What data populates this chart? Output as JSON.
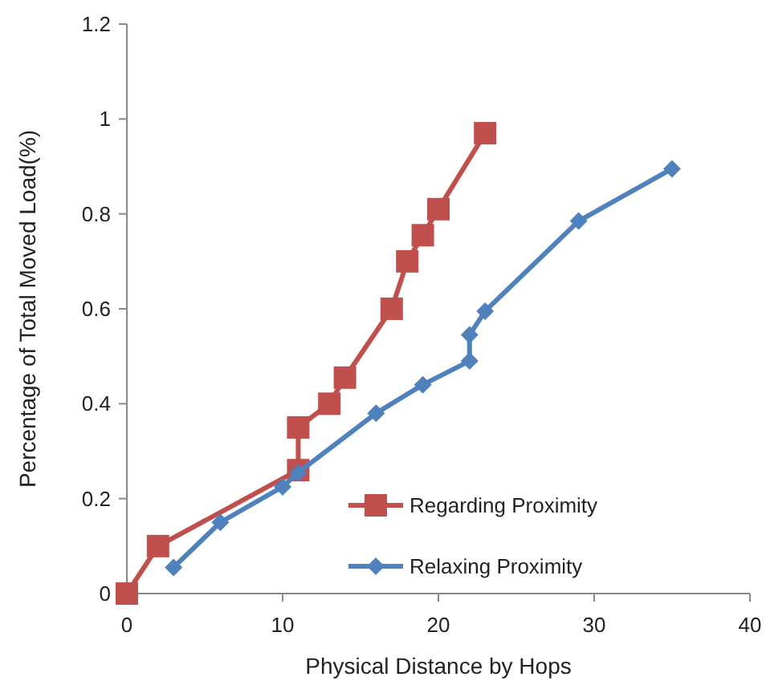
{
  "chart_data": {
    "type": "line",
    "xlabel": "Physical Distance by Hops",
    "ylabel": "Percentage of Total Moved Load(%)",
    "xlim": [
      0,
      40
    ],
    "xticks": [
      0,
      10,
      20,
      30,
      40
    ],
    "ylim": [
      0,
      1.2
    ],
    "yticks": [
      0,
      0.2,
      0.4,
      0.6,
      0.8,
      1,
      1.2
    ],
    "grid": false,
    "legend": "bottom right",
    "line_style": "solid",
    "series": [
      {
        "name": "Regarding Proximity",
        "color": "#c0504d",
        "marker": "square",
        "x": [
          0,
          2,
          11,
          11,
          13,
          14,
          17,
          18,
          19,
          20,
          23
        ],
        "values": [
          0,
          0.1,
          0.26,
          0.35,
          0.4,
          0.455,
          0.6,
          0.7,
          0.755,
          0.81,
          0.97
        ]
      },
      {
        "name": "Relaxing Proximity",
        "color": "#4f81bd",
        "marker": "diamond",
        "x": [
          3,
          6,
          10,
          11,
          16,
          19,
          22,
          22,
          23,
          29,
          35
        ],
        "values": [
          0.055,
          0.15,
          0.225,
          0.255,
          0.38,
          0.44,
          0.49,
          0.545,
          0.595,
          0.785,
          0.895
        ]
      }
    ]
  }
}
